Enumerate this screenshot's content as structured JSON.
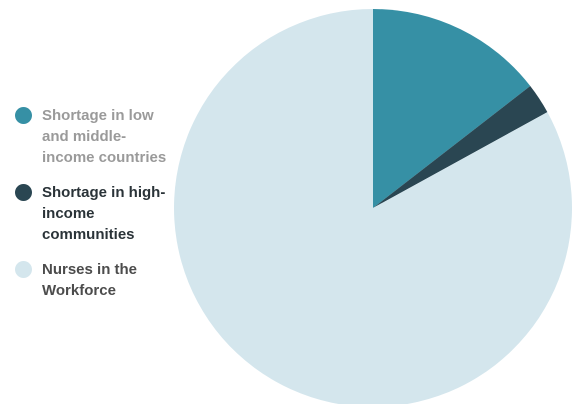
{
  "chart_data": {
    "type": "pie",
    "slices": [
      {
        "label": "Shortage in low and middle-income countries",
        "value": 14.5,
        "color": "#3690a5",
        "label_color": "#9a9a9a"
      },
      {
        "label": "Shortage in high-income communities",
        "value": 2.5,
        "color": "#2a4652",
        "label_color": "#2a3338"
      },
      {
        "label": "Nurses in the Workforce",
        "value": 83.0,
        "color": "#d4e6ed",
        "label_color": "#4c4c4c"
      }
    ],
    "start_angle_deg": 0,
    "direction": "clockwise",
    "legend_position": "left"
  }
}
